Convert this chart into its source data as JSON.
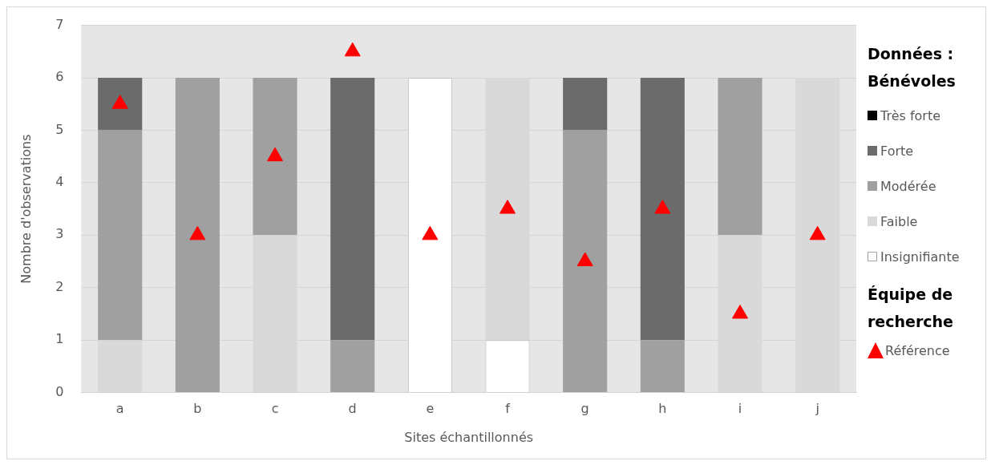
{
  "chart_data": {
    "type": "bar",
    "stacked": true,
    "xlabel": "Sites échantillonnés",
    "ylabel": "Nombre d'observations",
    "categories": [
      "a",
      "b",
      "c",
      "d",
      "e",
      "f",
      "g",
      "h",
      "i",
      "j"
    ],
    "ylim": [
      0,
      7
    ],
    "yticks": [
      0,
      1,
      2,
      3,
      4,
      5,
      6,
      7
    ],
    "grid": "y",
    "legend": "right",
    "legend_title": "Données : Bénévoles",
    "annotations": [
      "Équipe de recherche"
    ],
    "series": [
      {
        "name": "Insignifiante",
        "color": "#ffffff",
        "values": [
          0,
          0,
          0,
          0,
          6,
          1,
          0,
          0,
          0,
          0
        ]
      },
      {
        "name": "Faible",
        "color": "#d9d9d9",
        "values": [
          1,
          0,
          3,
          0,
          0,
          5,
          0,
          0,
          3,
          6
        ]
      },
      {
        "name": "Modérée",
        "color": "#a0a0a0",
        "values": [
          4,
          6,
          3,
          1,
          0,
          0,
          5,
          1,
          3,
          0
        ]
      },
      {
        "name": "Forte",
        "color": "#6b6b6b",
        "values": [
          1,
          0,
          0,
          5,
          0,
          0,
          1,
          5,
          0,
          0
        ]
      },
      {
        "name": "Très forte",
        "color": "#000000",
        "values": [
          0,
          0,
          0,
          0,
          0,
          0,
          0,
          0,
          0,
          0
        ]
      },
      {
        "name": "Référence",
        "type": "scatter",
        "marker": "triangle",
        "color": "#ff0000",
        "x": [
          "a",
          "b",
          "c",
          "d",
          "e",
          "f",
          "g",
          "h",
          "i",
          "j"
        ],
        "values": [
          5.5,
          3,
          4.5,
          6.5,
          3,
          3.5,
          2.5,
          3.5,
          1.5,
          3
        ]
      }
    ]
  }
}
